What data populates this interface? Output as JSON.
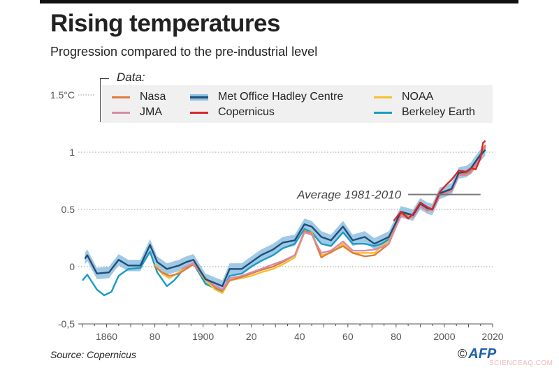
{
  "header": {
    "title": "Rising temperatures",
    "subtitle": "Progression compared to the pre-industrial level"
  },
  "footer": {
    "source": "Source: Copernicus",
    "copyright_symbol": "©",
    "logo": "AFP",
    "watermark": "SCIENCEAQ.COM"
  },
  "chart_data": {
    "type": "line",
    "title": "Rising temperatures",
    "subtitle": "Progression compared to the pre-industrial level",
    "xlabel": "",
    "ylabel": "",
    "xlim": [
      1850,
      2020
    ],
    "ylim": [
      -0.5,
      1.5
    ],
    "x_tick_labels": [
      {
        "year": 1860,
        "label": "1860"
      },
      {
        "year": 1880,
        "label": "80"
      },
      {
        "year": 1900,
        "label": "1900"
      },
      {
        "year": 1920,
        "label": "20"
      },
      {
        "year": 1940,
        "label": "40"
      },
      {
        "year": 1960,
        "label": "60"
      },
      {
        "year": 1980,
        "label": "80"
      },
      {
        "year": 2000,
        "label": "2000"
      },
      {
        "year": 2020,
        "label": "2020"
      }
    ],
    "y_tick_labels": [
      {
        "value": 1.5,
        "label": "1.5°C"
      },
      {
        "value": 1,
        "label": "1"
      },
      {
        "value": 0.5,
        "label": "0.5"
      },
      {
        "value": 0,
        "label": "0"
      },
      {
        "value": -0.5,
        "label": "-0,5"
      }
    ],
    "grid": "horizontal dotted",
    "legend_title": "Data:",
    "legend_position": "top",
    "annotation": {
      "label": "Average 1981-2010",
      "value": 0.63,
      "from": 1985,
      "to": 2015
    },
    "series": [
      {
        "name": "Met Office Hadley Centre",
        "color": "#1f4e79",
        "band_color": "#8fbfe0",
        "band": 0.05,
        "points": [
          [
            1851,
            0.07
          ],
          [
            1852,
            0.1
          ],
          [
            1856,
            -0.06
          ],
          [
            1861,
            -0.05
          ],
          [
            1865,
            0.06
          ],
          [
            1869,
            0.01
          ],
          [
            1874,
            0.01
          ],
          [
            1878,
            0.19
          ],
          [
            1881,
            0.04
          ],
          [
            1885,
            -0.02
          ],
          [
            1890,
            0.01
          ],
          [
            1893,
            0.04
          ],
          [
            1896,
            0.06
          ],
          [
            1901,
            -0.11
          ],
          [
            1908,
            -0.17
          ],
          [
            1911,
            -0.02
          ],
          [
            1916,
            -0.02
          ],
          [
            1920,
            0.04
          ],
          [
            1924,
            0.1
          ],
          [
            1929,
            0.15
          ],
          [
            1933,
            0.21
          ],
          [
            1938,
            0.23
          ],
          [
            1942,
            0.37
          ],
          [
            1945,
            0.35
          ],
          [
            1949,
            0.26
          ],
          [
            1953,
            0.23
          ],
          [
            1958,
            0.35
          ],
          [
            1962,
            0.23
          ],
          [
            1967,
            0.26
          ],
          [
            1971,
            0.2
          ],
          [
            1974,
            0.23
          ],
          [
            1977,
            0.26
          ],
          [
            1980,
            0.39
          ],
          [
            1982,
            0.48
          ],
          [
            1987,
            0.45
          ],
          [
            1990,
            0.55
          ],
          [
            1993,
            0.51
          ],
          [
            1995,
            0.5
          ],
          [
            1998,
            0.64
          ],
          [
            2003,
            0.68
          ],
          [
            2006,
            0.82
          ],
          [
            2009,
            0.83
          ],
          [
            2011,
            0.86
          ],
          [
            2014,
            0.95
          ],
          [
            2017,
            1.02
          ]
        ]
      },
      {
        "name": "Berkeley Earth",
        "color": "#1a9bc4",
        "points": [
          [
            1850,
            -0.12
          ],
          [
            1852,
            -0.07
          ],
          [
            1856,
            -0.2
          ],
          [
            1859,
            -0.25
          ],
          [
            1862,
            -0.22
          ],
          [
            1865,
            -0.08
          ],
          [
            1869,
            -0.02
          ],
          [
            1874,
            -0.01
          ],
          [
            1878,
            0.13
          ],
          [
            1881,
            -0.05
          ],
          [
            1885,
            -0.17
          ],
          [
            1888,
            -0.12
          ],
          [
            1892,
            -0.02
          ],
          [
            1896,
            0.03
          ],
          [
            1901,
            -0.15
          ],
          [
            1908,
            -0.22
          ],
          [
            1911,
            -0.08
          ],
          [
            1916,
            -0.06
          ],
          [
            1920,
            0.0
          ],
          [
            1924,
            0.05
          ],
          [
            1929,
            0.1
          ],
          [
            1933,
            0.16
          ],
          [
            1938,
            0.2
          ],
          [
            1942,
            0.33
          ],
          [
            1945,
            0.3
          ],
          [
            1949,
            0.2
          ],
          [
            1953,
            0.18
          ],
          [
            1958,
            0.3
          ],
          [
            1962,
            0.2
          ],
          [
            1967,
            0.2
          ],
          [
            1971,
            0.18
          ],
          [
            1974,
            0.2
          ],
          [
            1977,
            0.24
          ],
          [
            1980,
            0.38
          ],
          [
            1982,
            0.47
          ],
          [
            1987,
            0.45
          ],
          [
            1990,
            0.55
          ],
          [
            1993,
            0.5
          ],
          [
            1995,
            0.5
          ],
          [
            1998,
            0.64
          ],
          [
            2003,
            0.68
          ],
          [
            2006,
            0.82
          ],
          [
            2009,
            0.82
          ],
          [
            2011,
            0.85
          ],
          [
            2014,
            0.95
          ],
          [
            2017,
            1.05
          ]
        ]
      },
      {
        "name": "NOAA",
        "color": "#f2c12e",
        "points": [
          [
            1880,
            0.02
          ],
          [
            1883,
            -0.06
          ],
          [
            1886,
            -0.1
          ],
          [
            1890,
            -0.05
          ],
          [
            1893,
            0.0
          ],
          [
            1896,
            0.03
          ],
          [
            1901,
            -0.12
          ],
          [
            1905,
            -0.2
          ],
          [
            1908,
            -0.23
          ],
          [
            1911,
            -0.12
          ],
          [
            1916,
            -0.1
          ],
          [
            1920,
            -0.08
          ],
          [
            1924,
            -0.05
          ],
          [
            1929,
            -0.02
          ],
          [
            1933,
            0.02
          ],
          [
            1938,
            0.08
          ],
          [
            1942,
            0.3
          ],
          [
            1945,
            0.3
          ],
          [
            1949,
            0.1
          ],
          [
            1953,
            0.12
          ],
          [
            1958,
            0.2
          ],
          [
            1962,
            0.12
          ],
          [
            1967,
            0.12
          ],
          [
            1971,
            0.12
          ],
          [
            1974,
            0.18
          ],
          [
            1977,
            0.22
          ],
          [
            1980,
            0.36
          ],
          [
            1982,
            0.45
          ],
          [
            1987,
            0.44
          ],
          [
            1990,
            0.54
          ],
          [
            1993,
            0.5
          ],
          [
            1995,
            0.5
          ],
          [
            1998,
            0.62
          ],
          [
            2003,
            0.66
          ],
          [
            2006,
            0.8
          ],
          [
            2009,
            0.8
          ],
          [
            2011,
            0.82
          ],
          [
            2014,
            0.9
          ],
          [
            2017,
            1.05
          ]
        ]
      },
      {
        "name": "Nasa",
        "color": "#e07b3c",
        "points": [
          [
            1880,
            0.0
          ],
          [
            1883,
            -0.05
          ],
          [
            1886,
            -0.08
          ],
          [
            1890,
            -0.06
          ],
          [
            1893,
            -0.02
          ],
          [
            1896,
            0.02
          ],
          [
            1901,
            -0.1
          ],
          [
            1905,
            -0.18
          ],
          [
            1908,
            -0.21
          ],
          [
            1911,
            -0.12
          ],
          [
            1916,
            -0.09
          ],
          [
            1920,
            -0.06
          ],
          [
            1924,
            -0.03
          ],
          [
            1929,
            0.0
          ],
          [
            1933,
            0.04
          ],
          [
            1938,
            0.1
          ],
          [
            1942,
            0.31
          ],
          [
            1945,
            0.29
          ],
          [
            1949,
            0.08
          ],
          [
            1953,
            0.13
          ],
          [
            1958,
            0.18
          ],
          [
            1962,
            0.12
          ],
          [
            1967,
            0.09
          ],
          [
            1971,
            0.1
          ],
          [
            1974,
            0.15
          ],
          [
            1977,
            0.2
          ],
          [
            1980,
            0.37
          ],
          [
            1982,
            0.46
          ],
          [
            1987,
            0.43
          ],
          [
            1990,
            0.53
          ],
          [
            1993,
            0.49
          ],
          [
            1995,
            0.51
          ],
          [
            1998,
            0.63
          ],
          [
            2003,
            0.67
          ],
          [
            2006,
            0.81
          ],
          [
            2009,
            0.81
          ],
          [
            2011,
            0.83
          ],
          [
            2014,
            0.93
          ],
          [
            2017,
            1.06
          ]
        ]
      },
      {
        "name": "JMA",
        "color": "#d98aa8",
        "points": [
          [
            1891,
            -0.02
          ],
          [
            1896,
            0.03
          ],
          [
            1901,
            -0.1
          ],
          [
            1905,
            -0.17
          ],
          [
            1908,
            -0.2
          ],
          [
            1911,
            -0.1
          ],
          [
            1916,
            -0.08
          ],
          [
            1920,
            -0.05
          ],
          [
            1924,
            -0.02
          ],
          [
            1929,
            0.02
          ],
          [
            1933,
            0.05
          ],
          [
            1938,
            0.1
          ],
          [
            1942,
            0.3
          ],
          [
            1945,
            0.28
          ],
          [
            1949,
            0.12
          ],
          [
            1953,
            0.14
          ],
          [
            1958,
            0.22
          ],
          [
            1962,
            0.14
          ],
          [
            1967,
            0.14
          ],
          [
            1971,
            0.15
          ],
          [
            1974,
            0.17
          ],
          [
            1977,
            0.2
          ],
          [
            1980,
            0.35
          ],
          [
            1982,
            0.44
          ],
          [
            1987,
            0.43
          ],
          [
            1990,
            0.53
          ],
          [
            1993,
            0.5
          ],
          [
            1995,
            0.49
          ],
          [
            1998,
            0.62
          ],
          [
            2003,
            0.66
          ],
          [
            2006,
            0.8
          ],
          [
            2009,
            0.8
          ],
          [
            2011,
            0.82
          ],
          [
            2014,
            0.92
          ],
          [
            2017,
            1.04
          ]
        ]
      },
      {
        "name": "Copernicus",
        "color": "#d7262b",
        "points": [
          [
            1979,
            0.4
          ],
          [
            1982,
            0.48
          ],
          [
            1985,
            0.42
          ],
          [
            1987,
            0.46
          ],
          [
            1990,
            0.56
          ],
          [
            1993,
            0.52
          ],
          [
            1995,
            0.5
          ],
          [
            1998,
            0.65
          ],
          [
            2001,
            0.72
          ],
          [
            2003,
            0.76
          ],
          [
            2006,
            0.84
          ],
          [
            2009,
            0.83
          ],
          [
            2011,
            0.86
          ],
          [
            2013,
            0.85
          ],
          [
            2015,
            0.95
          ],
          [
            2016,
            1.08
          ],
          [
            2017,
            1.1
          ]
        ]
      }
    ]
  }
}
